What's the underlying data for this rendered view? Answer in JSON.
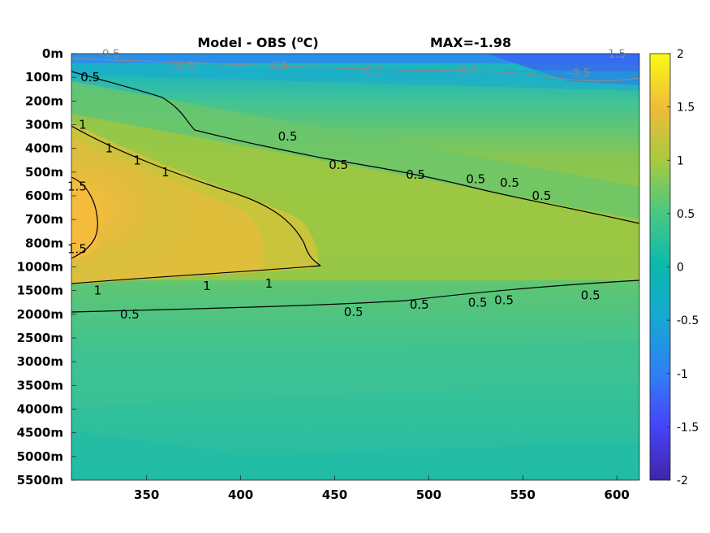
{
  "chart_data": {
    "type": "heatmap",
    "title": "Model - OBS (°C)",
    "title_parts": {
      "prefix": "Model - OBS (",
      "superscript": "o",
      "suffix": "C)"
    },
    "annotation": "MAX=-1.98",
    "xlabel": "",
    "ylabel": "",
    "xlim": [
      310,
      612
    ],
    "x_ticks": [
      350,
      400,
      450,
      500,
      550,
      600
    ],
    "y_tick_labels": [
      "0m",
      "100m",
      "200m",
      "300m",
      "400m",
      "500m",
      "600m",
      "700m",
      "800m",
      "1000m",
      "1500m",
      "2000m",
      "2500m",
      "3000m",
      "3500m",
      "4000m",
      "4500m",
      "5000m",
      "5500m"
    ],
    "colorbar": {
      "min": -2,
      "max": 2,
      "ticks": [
        "2",
        "1.5",
        "1",
        "0.5",
        "0",
        "-0.5",
        "-1",
        "-1.5",
        "-2"
      ],
      "colormap": "parula",
      "stops": [
        "#3e26a8",
        "#4743f8",
        "#2f7ff5",
        "#17a6d5",
        "#09b9ad",
        "#48c883",
        "#a8c940",
        "#f0bc39",
        "#f9fb15"
      ]
    },
    "contour_levels": [
      0.5,
      1,
      1.5,
      -0.5
    ],
    "contour_labels": [
      {
        "text": "0.5",
        "x": 320,
        "depth": "100m"
      },
      {
        "text": "0.5",
        "x": 425,
        "depth": "350m"
      },
      {
        "text": "0.5",
        "x": 452,
        "depth": "470m"
      },
      {
        "text": "0.5",
        "x": 493,
        "depth": "510m"
      },
      {
        "text": "0.5",
        "x": 525,
        "depth": "530m"
      },
      {
        "text": "0.5",
        "x": 543,
        "depth": "545m"
      },
      {
        "text": "0.5",
        "x": 560,
        "depth": "600m"
      },
      {
        "text": "1",
        "x": 316,
        "depth": "300m"
      },
      {
        "text": "1",
        "x": 330,
        "depth": "400m"
      },
      {
        "text": "1",
        "x": 345,
        "depth": "450m"
      },
      {
        "text": "1",
        "x": 360,
        "depth": "500m"
      },
      {
        "text": "1.5",
        "x": 313,
        "depth": "560m"
      },
      {
        "text": "1.5",
        "x": 313,
        "depth": "850m"
      },
      {
        "text": "1",
        "x": 324,
        "depth": "1500m"
      },
      {
        "text": "1",
        "x": 382,
        "depth": "1400m"
      },
      {
        "text": "1",
        "x": 415,
        "depth": "1350m"
      },
      {
        "text": "0.5",
        "x": 341,
        "depth": "2000m"
      },
      {
        "text": "0.5",
        "x": 460,
        "depth": "1950m"
      },
      {
        "text": "0.5",
        "x": 495,
        "depth": "1800m"
      },
      {
        "text": "0.5",
        "x": 526,
        "depth": "1750m"
      },
      {
        "text": "0.5",
        "x": 540,
        "depth": "1700m"
      },
      {
        "text": "0.5",
        "x": 586,
        "depth": "1600m"
      },
      {
        "text": "-0.5",
        "x": 330,
        "depth": "0m"
      },
      {
        "text": "-0.5",
        "x": 370,
        "depth": "50m"
      },
      {
        "text": "-0.5",
        "x": 420,
        "depth": "50m"
      },
      {
        "text": "-0.5",
        "x": 470,
        "depth": "70m"
      },
      {
        "text": "-0.5",
        "x": 520,
        "depth": "70m"
      },
      {
        "text": "-0.5",
        "x": 580,
        "depth": "80m"
      },
      {
        "text": "1.5",
        "x": 600,
        "depth": "0m"
      }
    ]
  }
}
